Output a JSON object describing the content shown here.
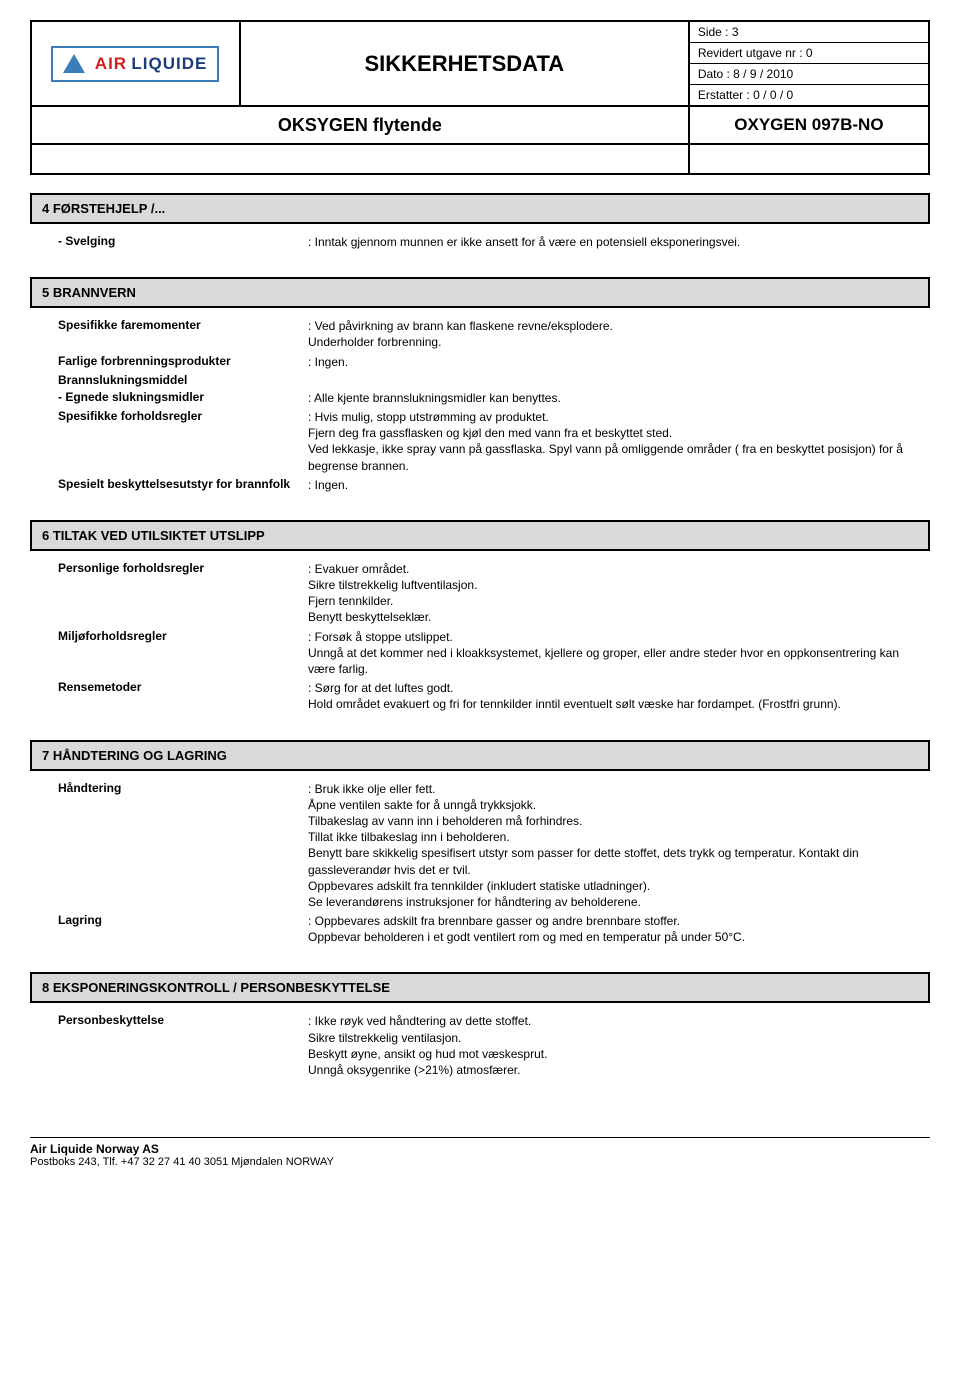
{
  "header": {
    "doc_title": "SIKKERHETSDATA",
    "product": "OKSYGEN flytende",
    "code": "OXYGEN 097B-NO",
    "meta": {
      "page": "Side : 3",
      "revision": "Revidert utgave nr : 0",
      "date": "Dato : 8 / 9 / 2010",
      "replaces": "Erstatter : 0 / 0 / 0"
    },
    "logo": {
      "air": "AIR",
      "liq": "LIQUIDE"
    }
  },
  "sections": {
    "s4": {
      "title": "4  FØRSTEHJELP  /...",
      "rows": [
        {
          "label": "- Svelging",
          "value": ": Inntak gjennom munnen er ikke ansett for å være en potensiell eksponeringsvei."
        }
      ]
    },
    "s5": {
      "title": "5  BRANNVERN",
      "rows": [
        {
          "label": "Spesifikke faremomenter",
          "value": ": Ved påvirkning av brann kan flaskene revne/eksplodere.\nUnderholder forbrenning."
        },
        {
          "label": "Farlige forbrenningsprodukter",
          "value": ": Ingen."
        },
        {
          "label": "Brannslukningsmiddel",
          "value": ""
        },
        {
          "label": "- Egnede slukningsmidler",
          "value": ": Alle kjente brannslukningsmidler kan benyttes."
        },
        {
          "label": "Spesifikke forholdsregler",
          "value": ": Hvis mulig, stopp utstrømming av produktet.\nFjern deg fra gassflasken og kjøl den med vann fra et beskyttet sted.\nVed lekkasje, ikke spray vann på gassflaska. Spyl vann på omliggende områder ( fra en beskyttet posisjon) for å begrense brannen."
        },
        {
          "label": "Spesielt beskyttelsesutstyr for brannfolk",
          "value": ": Ingen."
        }
      ]
    },
    "s6": {
      "title": "6  TILTAK VED UTILSIKTET UTSLIPP",
      "rows": [
        {
          "label": "Personlige forholdsregler",
          "value": ": Evakuer området.\nSikre tilstrekkelig luftventilasjon.\nFjern tennkilder.\nBenytt beskyttelseklær."
        },
        {
          "label": "Miljøforholdsregler",
          "value": ": Forsøk å stoppe utslippet.\nUnngå at det kommer ned i kloakksystemet, kjellere og groper, eller andre steder hvor en oppkonsentrering kan være farlig."
        },
        {
          "label": "Rensemetoder",
          "value": ": Sørg for at det luftes godt.\nHold området evakuert og fri for tennkilder inntil eventuelt sølt væske har fordampet. (Frostfri grunn)."
        }
      ]
    },
    "s7": {
      "title": "7  HÅNDTERING OG LAGRING",
      "rows": [
        {
          "label": "Håndtering",
          "value": ": Bruk ikke olje eller fett.\nÅpne ventilen sakte for å unngå trykksjokk.\nTilbakeslag av vann inn i beholderen må forhindres.\nTillat ikke tilbakeslag inn i beholderen.\nBenytt bare skikkelig spesifisert utstyr som passer for dette stoffet, dets trykk og temperatur. Kontakt din gassleverandør hvis det er tvil.\nOppbevares adskilt fra tennkilder (inkludert statiske utladninger).\nSe leverandørens instruksjoner for håndtering av beholderene."
        },
        {
          "label": "Lagring",
          "value": ": Oppbevares adskilt fra brennbare gasser og andre brennbare stoffer.\nOppbevar beholderen i et godt ventilert rom og med en temperatur på under 50°C."
        }
      ]
    },
    "s8": {
      "title": "8  EKSPONERINGSKONTROLL / PERSONBESKYTTELSE",
      "rows": [
        {
          "label": "Personbeskyttelse",
          "value": ": Ikke røyk ved håndtering av dette stoffet.\nSikre tilstrekkelig ventilasjon.\nBeskytt øyne, ansikt og hud mot væskesprut.\nUnngå oksygenrike (>21%) atmosfærer."
        }
      ]
    }
  },
  "footer": {
    "company": "Air Liquide Norway AS",
    "address": "Postboks 243, Tlf.  +47 32 27 41 40  3051  Mjøndalen  NORWAY"
  }
}
